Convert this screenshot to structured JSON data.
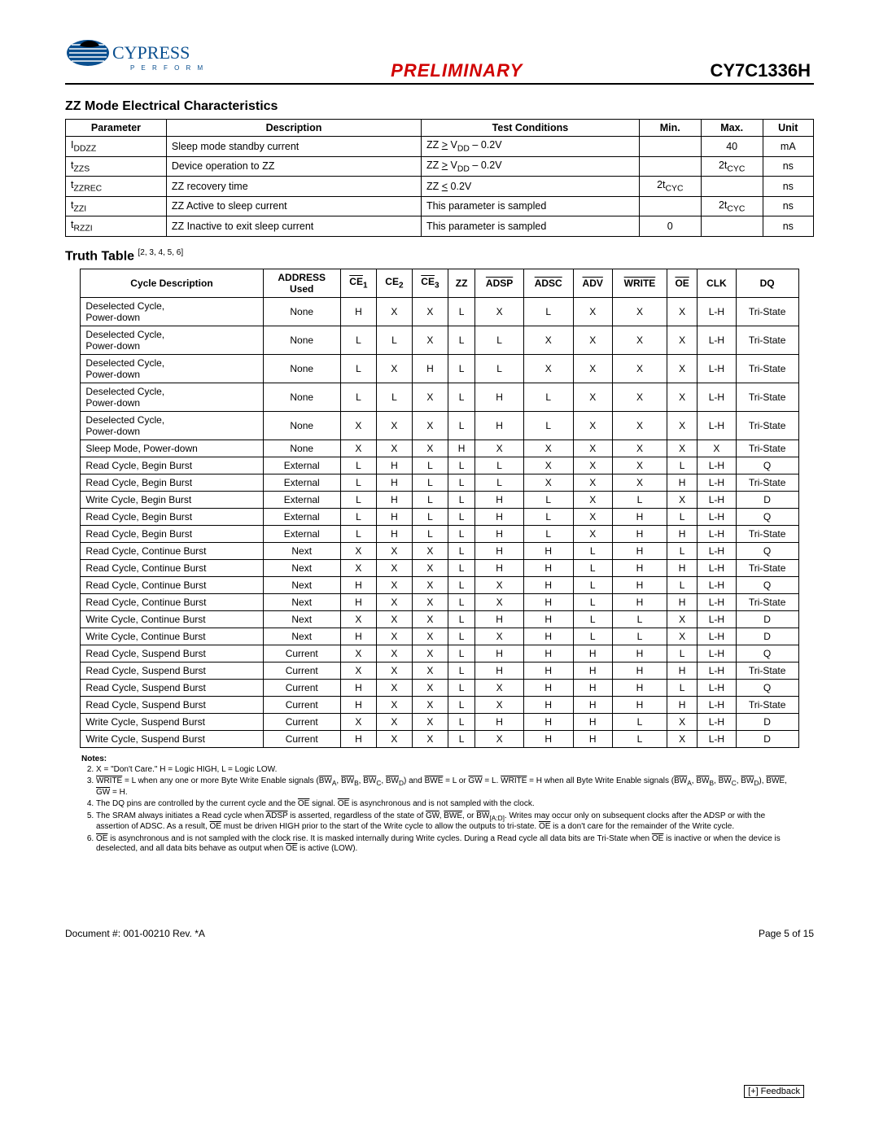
{
  "header": {
    "logo_main": "CYPRESS",
    "logo_sub": "P E R F O R M",
    "center": "PRELIMINARY",
    "part": "CY7C1336H"
  },
  "section1_title": "ZZ Mode Electrical Characteristics",
  "zz_table": {
    "cols": [
      "Parameter",
      "Description",
      "Test Conditions",
      "Min.",
      "Max.",
      "Unit"
    ],
    "rows": [
      {
        "param_html": "I<sub>DDZZ</sub>",
        "desc": "Sleep mode standby current",
        "test_html": "ZZ <u>&gt;</u> V<sub>DD</sub> – 0.2V",
        "min": "",
        "max": "40",
        "unit": "mA"
      },
      {
        "param_html": "t<sub>ZZS</sub>",
        "desc": "Device operation to ZZ",
        "test_html": "ZZ <u>&gt;</u> V<sub>DD</sub> – 0.2V",
        "min": "",
        "max_html": "2t<sub>CYC</sub>",
        "unit": "ns"
      },
      {
        "param_html": "t<sub>ZZREC</sub>",
        "desc": "ZZ recovery time",
        "test_html": "ZZ <u>&lt;</u> 0.2V",
        "min_html": "2t<sub>CYC</sub>",
        "max": "",
        "unit": "ns"
      },
      {
        "param_html": "t<sub>ZZI</sub>",
        "desc": "ZZ Active to sleep current",
        "test": "This parameter is sampled",
        "min": "",
        "max_html": "2t<sub>CYC</sub>",
        "unit": "ns"
      },
      {
        "param_html": "t<sub>RZZI</sub>",
        "desc": "ZZ Inactive to exit sleep current",
        "test": "This parameter is sampled",
        "min": "0",
        "max": "",
        "unit": "ns"
      }
    ]
  },
  "truth_title": "Truth Table",
  "truth_refs": "[2, 3, 4, 5, 6]",
  "truth_table": {
    "cols_html": [
      "Cycle Description",
      "ADDRESS<br>Used",
      "<span class='ovl'>CE</span><sub>1</sub>",
      "CE<sub>2</sub>",
      "<span class='ovl'>CE</span><sub>3</sub>",
      "ZZ",
      "<span class='ovl'>ADSP</span>",
      "<span class='ovl'>ADSC</span>",
      "<span class='ovl'>ADV</span>",
      "<span class='ovl'>WRITE</span>",
      "<span class='ovl'>OE</span>",
      "CLK",
      "DQ"
    ],
    "rows": [
      [
        "Deselected Cycle,<br>Power-down",
        "None",
        "H",
        "X",
        "X",
        "L",
        "X",
        "L",
        "X",
        "X",
        "X",
        "L-H",
        "Tri-State"
      ],
      [
        "Deselected Cycle,<br>Power-down",
        "None",
        "L",
        "L",
        "X",
        "L",
        "L",
        "X",
        "X",
        "X",
        "X",
        "L-H",
        "Tri-State"
      ],
      [
        "Deselected Cycle,<br>Power-down",
        "None",
        "L",
        "X",
        "H",
        "L",
        "L",
        "X",
        "X",
        "X",
        "X",
        "L-H",
        "Tri-State"
      ],
      [
        "Deselected Cycle,<br>Power-down",
        "None",
        "L",
        "L",
        "X",
        "L",
        "H",
        "L",
        "X",
        "X",
        "X",
        "L-H",
        "Tri-State"
      ],
      [
        "Deselected Cycle,<br>Power-down",
        "None",
        "X",
        "X",
        "X",
        "L",
        "H",
        "L",
        "X",
        "X",
        "X",
        "L-H",
        "Tri-State"
      ],
      [
        "Sleep Mode, Power-down",
        "None",
        "X",
        "X",
        "X",
        "H",
        "X",
        "X",
        "X",
        "X",
        "X",
        "X",
        "Tri-State"
      ],
      [
        "Read Cycle, Begin Burst",
        "External",
        "L",
        "H",
        "L",
        "L",
        "L",
        "X",
        "X",
        "X",
        "L",
        "L-H",
        "Q"
      ],
      [
        "Read Cycle, Begin Burst",
        "External",
        "L",
        "H",
        "L",
        "L",
        "L",
        "X",
        "X",
        "X",
        "H",
        "L-H",
        "Tri-State"
      ],
      [
        "Write Cycle, Begin Burst",
        "External",
        "L",
        "H",
        "L",
        "L",
        "H",
        "L",
        "X",
        "L",
        "X",
        "L-H",
        "D"
      ],
      [
        "Read Cycle, Begin Burst",
        "External",
        "L",
        "H",
        "L",
        "L",
        "H",
        "L",
        "X",
        "H",
        "L",
        "L-H",
        "Q"
      ],
      [
        "Read Cycle, Begin Burst",
        "External",
        "L",
        "H",
        "L",
        "L",
        "H",
        "L",
        "X",
        "H",
        "H",
        "L-H",
        "Tri-State"
      ],
      [
        "Read Cycle, Continue Burst",
        "Next",
        "X",
        "X",
        "X",
        "L",
        "H",
        "H",
        "L",
        "H",
        "L",
        "L-H",
        "Q"
      ],
      [
        "Read Cycle, Continue Burst",
        "Next",
        "X",
        "X",
        "X",
        "L",
        "H",
        "H",
        "L",
        "H",
        "H",
        "L-H",
        "Tri-State"
      ],
      [
        "Read Cycle, Continue Burst",
        "Next",
        "H",
        "X",
        "X",
        "L",
        "X",
        "H",
        "L",
        "H",
        "L",
        "L-H",
        "Q"
      ],
      [
        "Read Cycle, Continue Burst",
        "Next",
        "H",
        "X",
        "X",
        "L",
        "X",
        "H",
        "L",
        "H",
        "H",
        "L-H",
        "Tri-State"
      ],
      [
        "Write Cycle, Continue Burst",
        "Next",
        "X",
        "X",
        "X",
        "L",
        "H",
        "H",
        "L",
        "L",
        "X",
        "L-H",
        "D"
      ],
      [
        "Write Cycle, Continue Burst",
        "Next",
        "H",
        "X",
        "X",
        "L",
        "X",
        "H",
        "L",
        "L",
        "X",
        "L-H",
        "D"
      ],
      [
        "Read Cycle, Suspend Burst",
        "Current",
        "X",
        "X",
        "X",
        "L",
        "H",
        "H",
        "H",
        "H",
        "L",
        "L-H",
        "Q"
      ],
      [
        "Read Cycle, Suspend Burst",
        "Current",
        "X",
        "X",
        "X",
        "L",
        "H",
        "H",
        "H",
        "H",
        "H",
        "L-H",
        "Tri-State"
      ],
      [
        "Read Cycle, Suspend Burst",
        "Current",
        "H",
        "X",
        "X",
        "L",
        "X",
        "H",
        "H",
        "H",
        "L",
        "L-H",
        "Q"
      ],
      [
        "Read Cycle, Suspend Burst",
        "Current",
        "H",
        "X",
        "X",
        "L",
        "X",
        "H",
        "H",
        "H",
        "H",
        "L-H",
        "Tri-State"
      ],
      [
        "Write Cycle, Suspend Burst",
        "Current",
        "X",
        "X",
        "X",
        "L",
        "H",
        "H",
        "H",
        "L",
        "X",
        "L-H",
        "D"
      ],
      [
        "Write Cycle, Suspend Burst",
        "Current",
        "H",
        "X",
        "X",
        "L",
        "X",
        "H",
        "H",
        "L",
        "X",
        "L-H",
        "D"
      ]
    ]
  },
  "notes_title": "Notes:",
  "notes_start": 2,
  "notes": [
    "X = \"Don't Care.\" H = Logic HIGH, L = Logic LOW.",
    "<span class='ovl'>WRITE</span> = L when any one or more Byte Write Enable signals (<span class='ovl'>BW</span><sub>A</sub>, <span class='ovl'>BW</span><sub>B</sub>, <span class='ovl'>BW</span><sub>C</sub>, <span class='ovl'>BW</span><sub>D</sub>) and <span class='ovl'>BWE</span> = L or <span class='ovl'>GW</span> = L. <span class='ovl'>WRITE</span> = H when all Byte Write Enable signals (<span class='ovl'>BW</span><sub>A</sub>, <span class='ovl'>BW</span><sub>B</sub>, <span class='ovl'>BW</span><sub>C</sub>, <span class='ovl'>BW</span><sub>D</sub>), <span class='ovl'>BWE</span>, <span class='ovl'>GW</span> = H.",
    "The DQ pins are controlled by the current cycle and the <span class='ovl'>OE</span> signal. <span class='ovl'>OE</span> is asynchronous and is not sampled with the clock.",
    "The SRAM always initiates a Read cycle when <span class='ovl'>ADSP</span> is asserted, regardless of the state of <span class='ovl'>GW</span>, <span class='ovl'>BWE</span>, or <span class='ovl'>BW</span><sub>[A:D]</sub>. Writes may occur only on subsequent clocks after the ADSP or with the assertion of ADSC. As a result, <span class='ovl'>OE</span> must be driven HIGH prior to the start of the Write cycle to allow the outputs to tri-state. <span class='ovl'>OE</span> is a don't care for the remainder of the Write cycle.",
    "<span class='ovl'>OE</span> is asynchronous and is not sampled with the clock rise. It is masked internally during Write cycles. During a Read cycle all data bits are Tri-State when <span class='ovl'>OE</span> is inactive or when the device is deselected, and all data bits behave as output when <span class='ovl'>OE</span> is active (LOW)."
  ],
  "footer": {
    "doc": "Document #: 001-00210 Rev. *A",
    "page": "Page 5 of 15",
    "feedback": "[+] Feedback"
  }
}
